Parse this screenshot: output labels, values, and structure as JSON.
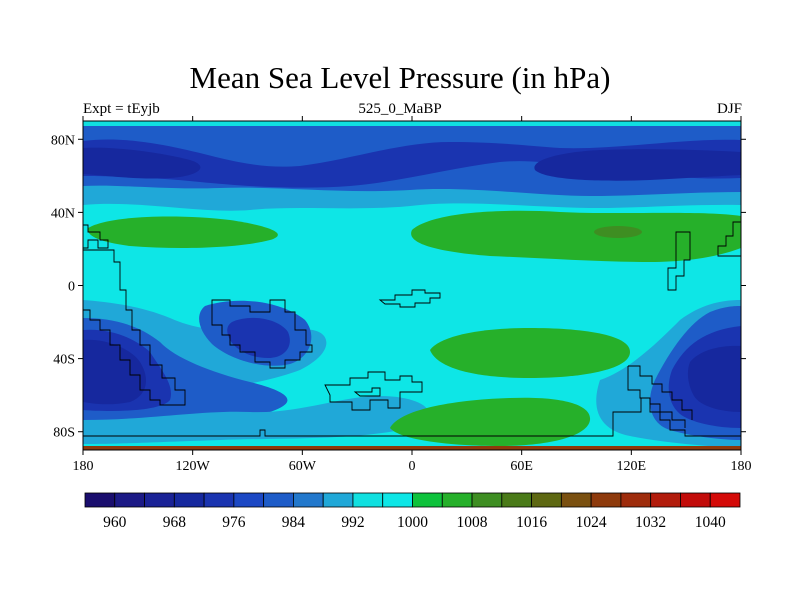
{
  "title": "Mean Sea Level Pressure (in hPa)",
  "left_string": "Expt = tEyjb",
  "center_string": "525_0_MaBP",
  "right_string": "DJF",
  "axes": {
    "x_ticks": [
      {
        "value": -180,
        "label": "180"
      },
      {
        "value": -120,
        "label": "120W"
      },
      {
        "value": -60,
        "label": "60W"
      },
      {
        "value": 0,
        "label": "0"
      },
      {
        "value": 60,
        "label": "60E"
      },
      {
        "value": 120,
        "label": "120E"
      },
      {
        "value": 180,
        "label": "180"
      }
    ],
    "y_ticks": [
      {
        "value": 80,
        "label": "80N"
      },
      {
        "value": 40,
        "label": "40N"
      },
      {
        "value": 0,
        "label": "0"
      },
      {
        "value": -40,
        "label": "40S"
      },
      {
        "value": -80,
        "label": "80S"
      }
    ]
  },
  "colorbar": {
    "colors": [
      "#1a0e6e",
      "#1c1a86",
      "#1a2296",
      "#16289e",
      "#1a34b0",
      "#1c48c4",
      "#1e5cc8",
      "#2278cc",
      "#20a8d8",
      "#10e0e0",
      "#0ee6e6",
      "#0ec23c",
      "#26b02a",
      "#3e8e22",
      "#4a7a18",
      "#5e6812",
      "#7a5010",
      "#8e3a0c",
      "#9e2c0c",
      "#b21c0c",
      "#c20c0a",
      "#d40a08"
    ],
    "tick_labels": [
      {
        "after_index": 1,
        "label": "960"
      },
      {
        "after_index": 3,
        "label": "968"
      },
      {
        "after_index": 5,
        "label": "976"
      },
      {
        "after_index": 7,
        "label": "984"
      },
      {
        "after_index": 9,
        "label": "992"
      },
      {
        "after_index": 11,
        "label": "1000"
      },
      {
        "after_index": 13,
        "label": "1008"
      },
      {
        "after_index": 15,
        "label": "1016"
      },
      {
        "after_index": 17,
        "label": "1024"
      },
      {
        "after_index": 19,
        "label": "1032"
      },
      {
        "after_index": 21,
        "label": "1040"
      }
    ]
  }
}
